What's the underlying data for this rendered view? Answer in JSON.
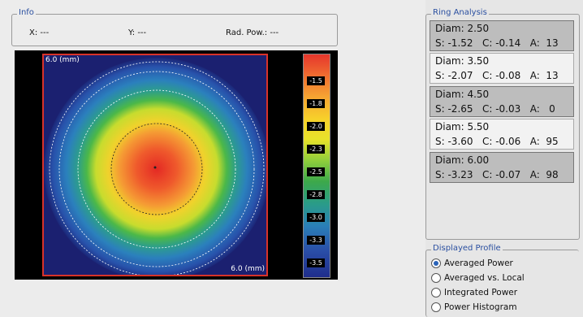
{
  "info": {
    "title": "Info",
    "x": "X: ---",
    "y": "Y: ---",
    "rad_pow": "Rad. Pow.: ---"
  },
  "map": {
    "scale_top": "6.0 (mm)",
    "scale_bottom": "6.0 (mm)",
    "colorbar_ticks": [
      "-1.5",
      "-1.8",
      "-2.0",
      "-2.3",
      "-2.5",
      "-2.8",
      "-3.0",
      "-3.3",
      "-3.5"
    ]
  },
  "ring_analysis": {
    "title": "Ring Analysis",
    "rings": [
      {
        "diam": "Diam: 2.50",
        "values": "S: -1.52   C: -0.14   A:  13"
      },
      {
        "diam": "Diam: 3.50",
        "values": "S: -2.07   C: -0.08   A:  13"
      },
      {
        "diam": "Diam: 4.50",
        "values": "S: -2.65   C: -0.03   A:   0"
      },
      {
        "diam": "Diam: 5.50",
        "values": "S: -3.60   C: -0.06   A:  95"
      },
      {
        "diam": "Diam: 6.00",
        "values": "S: -3.23   C: -0.07   A:  98"
      }
    ]
  },
  "displayed_profile": {
    "title": "Displayed Profile",
    "options": [
      "Averaged Power",
      "Averaged vs. Local",
      "Integrated Power",
      "Power Histogram"
    ],
    "selected": "Averaged Power"
  }
}
